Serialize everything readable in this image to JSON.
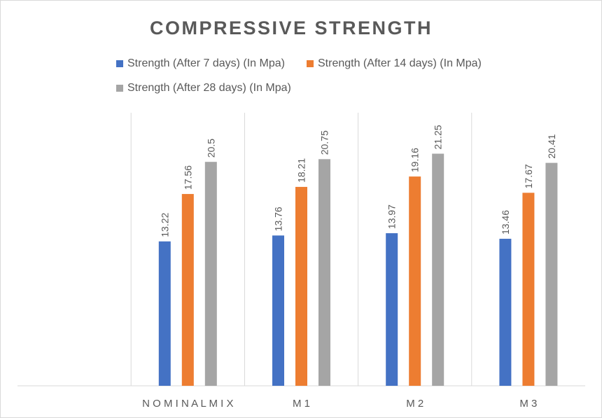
{
  "chart_data": {
    "type": "bar",
    "title": "COMPRESSIVE  STRENGTH",
    "categories": [
      "",
      "NOMINAL MIX",
      "M1",
      "M2",
      "M3"
    ],
    "category_labels": [
      "",
      "N O M I N A L  M I X",
      "M 1",
      "M 2",
      "M 3"
    ],
    "series": [
      {
        "name": "Strength (After 7 days) (In Mpa)",
        "color": "#4472C4",
        "values": [
          null,
          13.22,
          13.76,
          13.97,
          13.46
        ],
        "labels": [
          "",
          "13.22",
          "13.76",
          "13.97",
          "13.46"
        ]
      },
      {
        "name": "Strength (After 14 days) (In Mpa)",
        "color": "#ED7D31",
        "values": [
          null,
          17.56,
          18.21,
          19.16,
          17.67
        ],
        "labels": [
          "",
          "17.56",
          "18.21",
          "19.16",
          "17.67"
        ]
      },
      {
        "name": "Strength (After 28 days) (In Mpa)",
        "color": "#A5A5A5",
        "values": [
          null,
          20.5,
          20.75,
          21.25,
          20.41
        ],
        "labels": [
          "",
          "20.5",
          "20.75",
          "21.25",
          "20.41"
        ]
      }
    ],
    "ylim": [
      0,
      25
    ],
    "xlabel": "",
    "ylabel": "",
    "grid": "vertical category separators",
    "legend_position": "top"
  }
}
